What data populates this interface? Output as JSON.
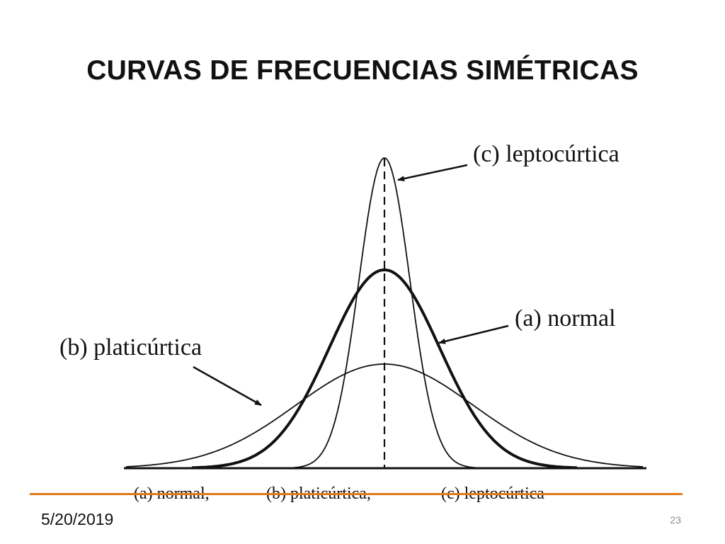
{
  "slide": {
    "title": "CURVAS DE FRECUENCIAS SIMÉTRICAS",
    "date": "5/20/2019",
    "page_number": "23",
    "accent_color": "#E07B1A"
  },
  "diagram": {
    "curves": [
      {
        "id": "normal",
        "label": "(a) normal",
        "stroke": "heavy"
      },
      {
        "id": "platicurtica",
        "label": "(b) platicúrtica",
        "stroke": "regular"
      },
      {
        "id": "leptocurtica",
        "label": "(c) leptocúrtica",
        "stroke": "regular"
      }
    ],
    "caption": {
      "normal": "(a) normal,",
      "platicurtica": "(b) platicúrtica,",
      "leptocurtica": "(c) leptocúrtica"
    }
  }
}
